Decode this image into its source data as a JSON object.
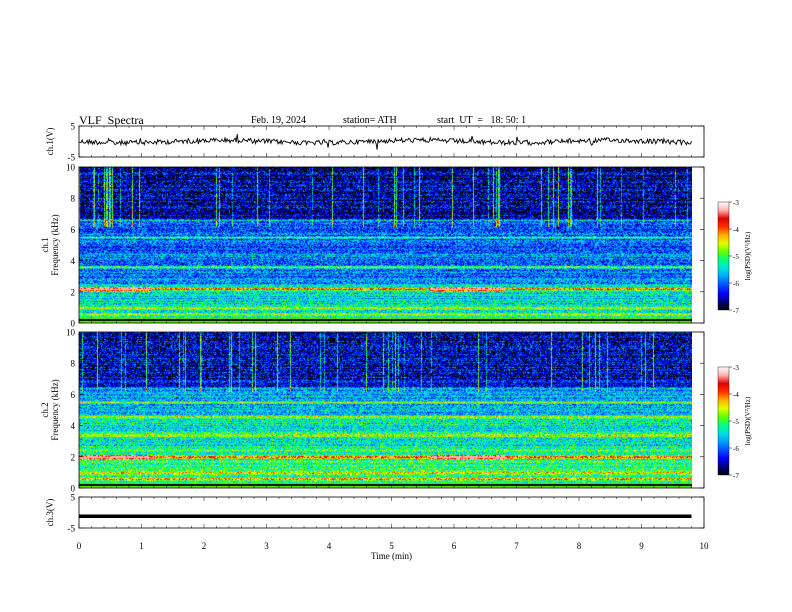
{
  "header": {
    "title": "VLF  Spectra",
    "date": "Feb. 19, 2024",
    "station": "station= ATH",
    "start": "start  UT  =   18: 50: 1"
  },
  "chart_data": [
    {
      "type": "line",
      "name": "ch1-voltage",
      "ylabel": "ch.1(V)",
      "ylim": [
        -5,
        5
      ],
      "yticks": [
        "5",
        "-5"
      ],
      "trace_color": "#000000",
      "level": 0
    },
    {
      "type": "heatmap",
      "name": "ch1-spectrogram",
      "ylabel": "ch.1\nFrequency  (kHz)",
      "ylim": [
        0,
        10
      ],
      "yticks": [
        "0",
        "2",
        "4",
        "6",
        "8",
        "10"
      ],
      "colorbar": {
        "label": "log(PSD)(V²/Hz)",
        "range": [
          -7,
          -3
        ],
        "ticks": [
          "-3",
          "-4",
          "-5",
          "-6",
          "-7"
        ]
      },
      "strong_bands_khz": [
        2.2,
        1.0,
        0.6,
        3.6,
        5.5,
        6.6
      ],
      "intensity": "ch1"
    },
    {
      "type": "heatmap",
      "name": "ch2-spectrogram",
      "ylabel": "ch.2\nFrequency  (kHz)",
      "ylim": [
        0,
        10
      ],
      "yticks": [
        "0",
        "2",
        "4",
        "6",
        "8",
        "10"
      ],
      "colorbar": {
        "label": "log(PSD)(V²/Hz)",
        "range": [
          -7,
          -3
        ],
        "ticks": [
          "-3",
          "-4",
          "-5",
          "-6",
          "-7"
        ]
      },
      "strong_bands_khz": [
        2.0,
        1.0,
        0.6,
        3.4,
        4.6,
        5.5
      ],
      "intensity": "ch2"
    },
    {
      "type": "line",
      "name": "ch3-voltage",
      "ylabel": "ch.3(V)",
      "ylim": [
        -5,
        5
      ],
      "yticks": [
        "5",
        "-5"
      ],
      "trace_color": "#000000",
      "level": -1.2
    }
  ],
  "x_axis": {
    "label": "Time  (min)",
    "xlim": [
      0,
      10
    ],
    "ticks": [
      "0",
      "1",
      "2",
      "3",
      "4",
      "5",
      "6",
      "7",
      "8",
      "9",
      "10"
    ],
    "data_end": 9.8
  },
  "colormap": [
    "#000000",
    "#00007a",
    "#0000ff",
    "#0050ff",
    "#00a0ff",
    "#00e0e0",
    "#00ff80",
    "#60ff00",
    "#e0ff00",
    "#ffb000",
    "#ff3000",
    "#e00000",
    "#ffb0b0",
    "#ffffff"
  ]
}
